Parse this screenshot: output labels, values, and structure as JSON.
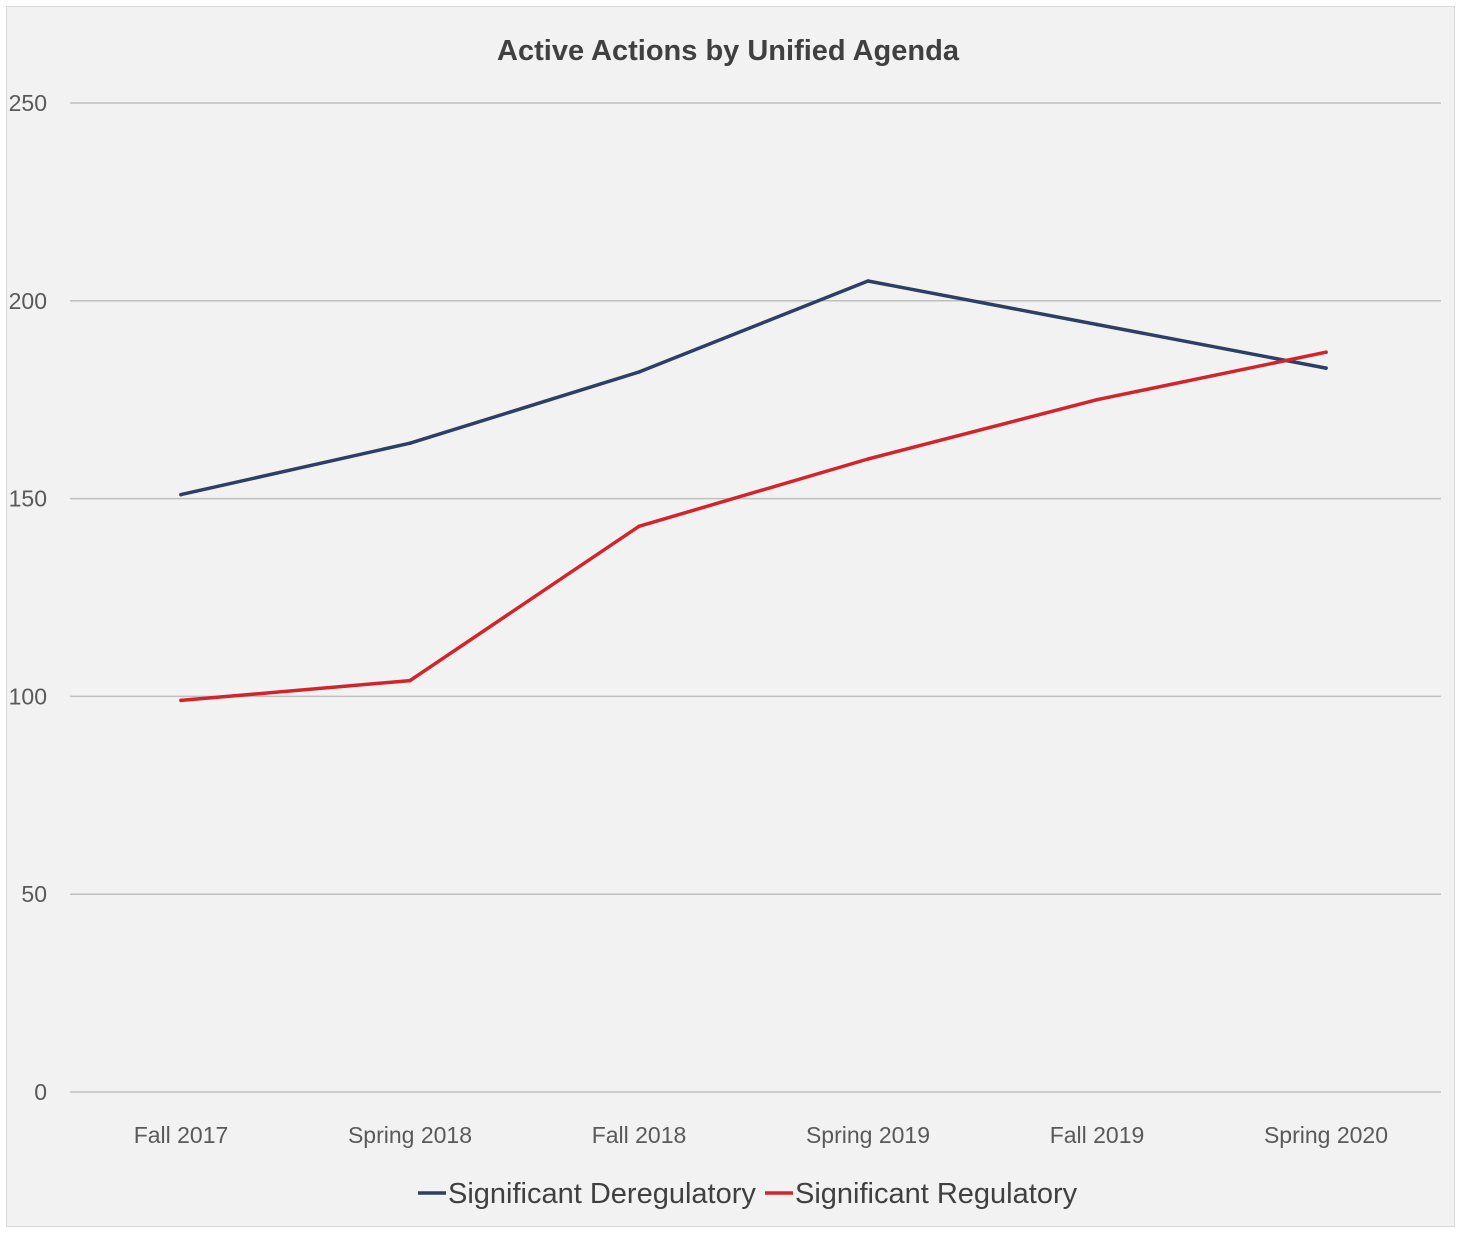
{
  "chart_data": {
    "type": "line",
    "title": "Active Actions by Unified Agenda",
    "xlabel": "",
    "ylabel": "",
    "categories": [
      "Fall 2017",
      "Spring 2018",
      "Fall 2018",
      "Spring 2019",
      "Fall 2019",
      "Spring 2020"
    ],
    "ylim": [
      0,
      250
    ],
    "yticks": [
      "0",
      "50",
      "100",
      "150",
      "200",
      "250"
    ],
    "grid": "horizontal",
    "legend_position": "bottom",
    "series": [
      {
        "name": "Significant Deregulatory",
        "color": "#2e3f66",
        "values": [
          151,
          164,
          182,
          205,
          194,
          183
        ]
      },
      {
        "name": "Significant Regulatory",
        "color": "#d1242c",
        "values": [
          99,
          104,
          143,
          160,
          175,
          187
        ]
      }
    ]
  }
}
